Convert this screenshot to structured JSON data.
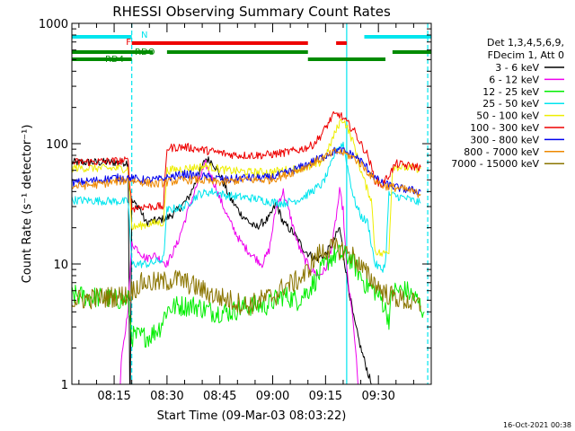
{
  "chart_data": {
    "type": "line",
    "title": "RHESSI Observing Summary Count Rates",
    "xlabel": "Start Time (09-Mar-03 08:03:22)",
    "ylabel": "Count Rate (s⁻¹ detector⁻¹)",
    "yscale": "log",
    "ylim": [
      1,
      1000
    ],
    "yticks": [
      1,
      10,
      100,
      1000
    ],
    "yticklabels": [
      "1",
      "10",
      "100",
      "1000"
    ],
    "xlim_minutes": [
      0,
      102
    ],
    "xticks_minutes": [
      12,
      27,
      42,
      57,
      72,
      87
    ],
    "xticklabels": [
      "08:15",
      "08:30",
      "08:45",
      "09:00",
      "09:15",
      "09:30"
    ],
    "timestamp": "16-Oct-2021 00:38",
    "legend_header": [
      "Det 1,3,4,5,6,9,",
      "FDecim 1, Att 0"
    ],
    "legend_position": "right",
    "flags": [
      {
        "label": "N",
        "color": "#00e5ee",
        "segments": [
          [
            0,
            17
          ],
          [
            83,
            102
          ]
        ]
      },
      {
        "label": "F",
        "color": "#ee0000",
        "segments": [
          [
            17,
            67
          ],
          [
            75,
            78
          ]
        ]
      },
      {
        "label": "RDO",
        "color": "#008b00",
        "segments": [
          [
            0,
            23
          ],
          [
            27,
            67
          ],
          [
            91,
            102
          ]
        ]
      },
      {
        "label": "RD4",
        "color": "#008b00",
        "segments": [
          [
            0,
            17
          ],
          [
            67,
            89
          ]
        ]
      }
    ],
    "vertical_lines": [
      {
        "minute": 17,
        "color": "#00e5ee",
        "style": "dashed"
      },
      {
        "minute": 78,
        "color": "#00e5ee",
        "style": "solid"
      },
      {
        "minute": 101,
        "color": "#00e5ee",
        "style": "dashed"
      }
    ],
    "series": [
      {
        "name": "3 - 6 keV",
        "color": "#000000",
        "points": [
          [
            0,
            70
          ],
          [
            16,
            70
          ],
          [
            16.5,
            0.5
          ],
          [
            17,
            33
          ],
          [
            19,
            30
          ],
          [
            21,
            22
          ],
          [
            27,
            24
          ],
          [
            30,
            28
          ],
          [
            33,
            35
          ],
          [
            36,
            55
          ],
          [
            38,
            75
          ],
          [
            40,
            70
          ],
          [
            42,
            55
          ],
          [
            45,
            35
          ],
          [
            48,
            26
          ],
          [
            52,
            20
          ],
          [
            56,
            24
          ],
          [
            58,
            32
          ],
          [
            60,
            22
          ],
          [
            63,
            18
          ],
          [
            66,
            13
          ],
          [
            69,
            11
          ],
          [
            72,
            12
          ],
          [
            74,
            15
          ],
          [
            76,
            20
          ],
          [
            78,
            8
          ],
          [
            80,
            3.5
          ],
          [
            82,
            2
          ],
          [
            85,
            1
          ]
        ]
      },
      {
        "name": "6 - 12 keV",
        "color": "#ee00ee",
        "points": [
          [
            13,
            0.3
          ],
          [
            14,
            1.5
          ],
          [
            15,
            2.5
          ],
          [
            16,
            4.5
          ],
          [
            17,
            15
          ],
          [
            19,
            13
          ],
          [
            21,
            11
          ],
          [
            23,
            12
          ],
          [
            25,
            11
          ],
          [
            27,
            10
          ],
          [
            30,
            15
          ],
          [
            33,
            28
          ],
          [
            36,
            50
          ],
          [
            38,
            68
          ],
          [
            40,
            50
          ],
          [
            42,
            35
          ],
          [
            45,
            22
          ],
          [
            48,
            15
          ],
          [
            51,
            12
          ],
          [
            54,
            10
          ],
          [
            56,
            13
          ],
          [
            58,
            30
          ],
          [
            60,
            40
          ],
          [
            62,
            25
          ],
          [
            64,
            15
          ],
          [
            66,
            11
          ],
          [
            68,
            9
          ],
          [
            70,
            8
          ],
          [
            72,
            9
          ],
          [
            74,
            15
          ],
          [
            76,
            40
          ],
          [
            77,
            28
          ],
          [
            78,
            9
          ],
          [
            80,
            3
          ],
          [
            82,
            0.5
          ]
        ]
      },
      {
        "name": "12 - 25 keV",
        "color": "#00ee00",
        "points": [
          [
            0,
            5.5
          ],
          [
            16,
            5
          ],
          [
            17,
            2.5
          ],
          [
            20,
            2.5
          ],
          [
            22,
            2.5
          ],
          [
            25,
            3
          ],
          [
            27,
            4.2
          ],
          [
            30,
            4.5
          ],
          [
            35,
            4.5
          ],
          [
            40,
            4
          ],
          [
            45,
            4
          ],
          [
            50,
            4.5
          ],
          [
            55,
            4.5
          ],
          [
            60,
            5.5
          ],
          [
            64,
            5
          ],
          [
            67,
            6
          ],
          [
            70,
            8
          ],
          [
            73,
            11
          ],
          [
            75,
            12
          ],
          [
            77,
            12
          ],
          [
            79,
            11
          ],
          [
            81,
            9
          ],
          [
            83,
            7
          ],
          [
            86,
            6
          ],
          [
            88,
            5
          ],
          [
            90,
            3.5
          ],
          [
            91,
            6
          ],
          [
            95,
            6
          ],
          [
            98,
            5
          ],
          [
            100,
            4
          ]
        ]
      },
      {
        "name": "25 - 50 keV",
        "color": "#00e5ee",
        "points": [
          [
            0,
            34
          ],
          [
            16,
            33
          ],
          [
            17,
            10
          ],
          [
            22,
            10
          ],
          [
            26,
            11
          ],
          [
            27,
            28
          ],
          [
            32,
            30
          ],
          [
            36,
            38
          ],
          [
            40,
            40
          ],
          [
            44,
            37
          ],
          [
            48,
            36
          ],
          [
            52,
            35
          ],
          [
            56,
            33
          ],
          [
            60,
            32
          ],
          [
            64,
            34
          ],
          [
            67,
            38
          ],
          [
            69,
            42
          ],
          [
            71,
            46
          ],
          [
            73,
            60
          ],
          [
            75,
            90
          ],
          [
            77,
            100
          ],
          [
            78,
            70
          ],
          [
            80,
            35
          ],
          [
            82,
            25
          ],
          [
            84,
            22
          ],
          [
            86,
            10
          ],
          [
            88,
            9
          ],
          [
            89,
            10
          ],
          [
            90,
            38
          ],
          [
            95,
            35
          ],
          [
            99,
            32
          ]
        ]
      },
      {
        "name": "50 - 100 keV",
        "color": "#eeee00",
        "points": [
          [
            0,
            63
          ],
          [
            16,
            62
          ],
          [
            17,
            20
          ],
          [
            20,
            21
          ],
          [
            24,
            22
          ],
          [
            26,
            22
          ],
          [
            27,
            60
          ],
          [
            32,
            62
          ],
          [
            38,
            65
          ],
          [
            44,
            60
          ],
          [
            50,
            58
          ],
          [
            56,
            58
          ],
          [
            60,
            60
          ],
          [
            64,
            62
          ],
          [
            68,
            64
          ],
          [
            70,
            68
          ],
          [
            72,
            78
          ],
          [
            74,
            110
          ],
          [
            76,
            150
          ],
          [
            77,
            160
          ],
          [
            78,
            140
          ],
          [
            80,
            100
          ],
          [
            82,
            60
          ],
          [
            84,
            40
          ],
          [
            85,
            35
          ],
          [
            86,
            13
          ],
          [
            88,
            12
          ],
          [
            90,
            13
          ],
          [
            91,
            65
          ],
          [
            95,
            63
          ],
          [
            99,
            62
          ]
        ]
      },
      {
        "name": "100 - 300 keV",
        "color": "#ee0000",
        "points": [
          [
            0,
            70
          ],
          [
            16,
            72
          ],
          [
            17,
            29
          ],
          [
            20,
            30
          ],
          [
            23,
            30
          ],
          [
            26,
            30
          ],
          [
            27,
            92
          ],
          [
            32,
            94
          ],
          [
            36,
            90
          ],
          [
            40,
            86
          ],
          [
            44,
            82
          ],
          [
            48,
            80
          ],
          [
            52,
            80
          ],
          [
            56,
            81
          ],
          [
            60,
            84
          ],
          [
            64,
            88
          ],
          [
            68,
            96
          ],
          [
            70,
            110
          ],
          [
            72,
            135
          ],
          [
            74,
            170
          ],
          [
            76,
            175
          ],
          [
            78,
            150
          ],
          [
            80,
            130
          ],
          [
            82,
            100
          ],
          [
            84,
            80
          ],
          [
            86,
            50
          ],
          [
            88,
            45
          ],
          [
            90,
            55
          ],
          [
            92,
            68
          ],
          [
            96,
            65
          ],
          [
            99,
            64
          ]
        ]
      },
      {
        "name": "300 - 800 keV",
        "color": "#0000ee",
        "points": [
          [
            0,
            47
          ],
          [
            8,
            50
          ],
          [
            12,
            52
          ],
          [
            16,
            52
          ],
          [
            20,
            50
          ],
          [
            24,
            50
          ],
          [
            27,
            52
          ],
          [
            32,
            56
          ],
          [
            36,
            54
          ],
          [
            40,
            52
          ],
          [
            44,
            50
          ],
          [
            48,
            52
          ],
          [
            52,
            52
          ],
          [
            56,
            52
          ],
          [
            60,
            56
          ],
          [
            64,
            62
          ],
          [
            68,
            70
          ],
          [
            72,
            80
          ],
          [
            75,
            88
          ],
          [
            77,
            87
          ],
          [
            80,
            80
          ],
          [
            82,
            72
          ],
          [
            84,
            62
          ],
          [
            86,
            52
          ],
          [
            88,
            47
          ],
          [
            90,
            45
          ],
          [
            94,
            42
          ],
          [
            99,
            40
          ]
        ]
      },
      {
        "name": "800 - 7000 keV",
        "color": "#ee8800",
        "points": [
          [
            0,
            44
          ],
          [
            8,
            46
          ],
          [
            12,
            48
          ],
          [
            16,
            50
          ],
          [
            20,
            48
          ],
          [
            24,
            46
          ],
          [
            27,
            48
          ],
          [
            32,
            50
          ],
          [
            36,
            50
          ],
          [
            40,
            48
          ],
          [
            44,
            48
          ],
          [
            48,
            50
          ],
          [
            52,
            50
          ],
          [
            56,
            50
          ],
          [
            60,
            54
          ],
          [
            64,
            60
          ],
          [
            68,
            68
          ],
          [
            72,
            78
          ],
          [
            75,
            86
          ],
          [
            77,
            84
          ],
          [
            80,
            76
          ],
          [
            82,
            68
          ],
          [
            84,
            58
          ],
          [
            86,
            50
          ],
          [
            88,
            45
          ],
          [
            90,
            44
          ],
          [
            94,
            42
          ],
          [
            99,
            38
          ]
        ]
      },
      {
        "name": "7000 - 15000 keV",
        "color": "#8b7500",
        "points": [
          [
            0,
            5
          ],
          [
            16,
            5.5
          ],
          [
            17,
            6
          ],
          [
            20,
            7
          ],
          [
            25,
            7
          ],
          [
            30,
            7.5
          ],
          [
            35,
            6.5
          ],
          [
            40,
            5.5
          ],
          [
            45,
            5
          ],
          [
            50,
            4.5
          ],
          [
            55,
            5.2
          ],
          [
            58,
            5.5
          ],
          [
            60,
            6.5
          ],
          [
            63,
            7
          ],
          [
            66,
            8
          ],
          [
            68,
            10
          ],
          [
            70,
            12
          ],
          [
            73,
            13.5
          ],
          [
            75,
            13.5
          ],
          [
            77,
            13
          ],
          [
            80,
            11.5
          ],
          [
            82,
            9.5
          ],
          [
            84,
            8
          ],
          [
            86,
            7
          ],
          [
            88,
            6
          ],
          [
            90,
            5.5
          ],
          [
            94,
            5
          ],
          [
            99,
            4.5
          ]
        ]
      }
    ]
  }
}
